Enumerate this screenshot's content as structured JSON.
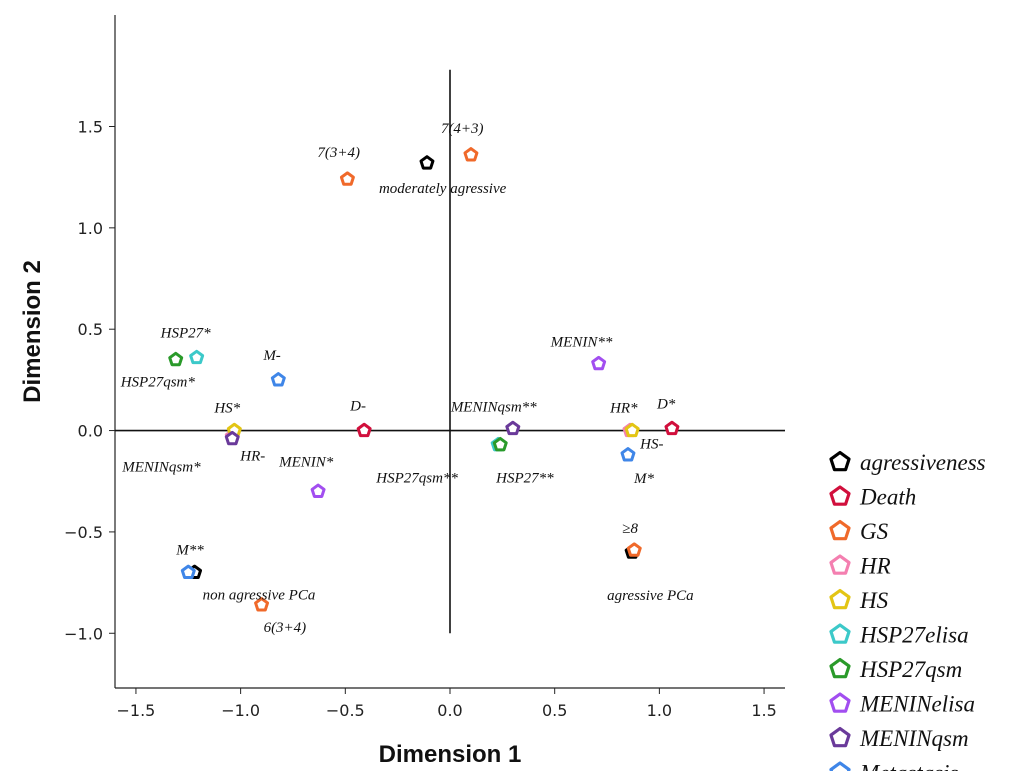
{
  "chart_data": {
    "type": "scatter",
    "title": "",
    "xlabel": "Dimension 1",
    "ylabel": "Dimension 2",
    "xlim": [
      -1.6,
      1.6
    ],
    "ylim": [
      -1.27,
      2.05
    ],
    "xticks": [
      "-1.5",
      "-1.0",
      "-0.5",
      "0.0",
      "0.5",
      "1.0",
      "1.5"
    ],
    "yticks": [
      "-1.0",
      "-0.5",
      "0.0",
      "0.5",
      "1.0",
      "1.5"
    ],
    "xtick_values": [
      -1.5,
      -1.0,
      -0.5,
      0.0,
      0.5,
      1.0,
      1.5
    ],
    "ytick_values": [
      -1.0,
      -0.5,
      0.0,
      0.5,
      1.0,
      1.5
    ],
    "grid": false,
    "reference_lines": {
      "x": 0,
      "y": 0
    },
    "legend_position": "right",
    "series": [
      {
        "name": "agressiveness",
        "color": "#000000",
        "points": [
          {
            "x": -0.11,
            "y": 1.32,
            "label": "moderately agressive"
          },
          {
            "x": 0.87,
            "y": -0.6,
            "label": "agressive PCa"
          },
          {
            "x": -1.22,
            "y": -0.7,
            "label": "non agressive PCa"
          }
        ]
      },
      {
        "name": "Death",
        "color": "#d10f3c",
        "points": [
          {
            "x": -0.41,
            "y": 0.0,
            "label": "D-"
          },
          {
            "x": 1.06,
            "y": 0.01,
            "label": "D*"
          }
        ]
      },
      {
        "name": "GS",
        "color": "#f0692a",
        "points": [
          {
            "x": 0.1,
            "y": 1.36,
            "label": "7(4+3)"
          },
          {
            "x": -0.49,
            "y": 1.24,
            "label": "7(3+4)"
          },
          {
            "x": 0.88,
            "y": -0.59,
            "label": "≥8"
          },
          {
            "x": -0.9,
            "y": -0.86,
            "label": "6(3+4)"
          }
        ]
      },
      {
        "name": "HR",
        "color": "#f47fb0",
        "points": [
          {
            "x": 0.86,
            "y": 0.0,
            "label": "HR*"
          },
          {
            "x": -1.04,
            "y": -0.03,
            "label": "HR-"
          }
        ]
      },
      {
        "name": "HS",
        "color": "#e3c514",
        "points": [
          {
            "x": 0.87,
            "y": 0.0,
            "label": "HS-"
          },
          {
            "x": -1.03,
            "y": 0.0,
            "label": "HS*"
          }
        ]
      },
      {
        "name": "HSP27elisa",
        "color": "#3cc9c9",
        "points": [
          {
            "x": -1.21,
            "y": 0.36,
            "label": "HSP27*"
          },
          {
            "x": 0.23,
            "y": -0.07,
            "label": "HSP27**"
          }
        ]
      },
      {
        "name": "HSP27qsm",
        "color": "#2a9a2a",
        "points": [
          {
            "x": -1.31,
            "y": 0.35,
            "label": "HSP27qsm*"
          },
          {
            "x": 0.24,
            "y": -0.07,
            "label": "HSP27qsm**"
          }
        ]
      },
      {
        "name": "MENINelisa",
        "color": "#a24ef0",
        "points": [
          {
            "x": 0.71,
            "y": 0.33,
            "label": "MENIN**"
          },
          {
            "x": -0.63,
            "y": -0.3,
            "label": "MENIN*"
          }
        ]
      },
      {
        "name": "MENINqsm",
        "color": "#6a3a9a",
        "points": [
          {
            "x": 0.3,
            "y": 0.01,
            "label": "MENINqsm**"
          },
          {
            "x": -1.04,
            "y": -0.04,
            "label": "MENINqsm*"
          }
        ]
      },
      {
        "name": "Metastasis",
        "color": "#3f86e8",
        "points": [
          {
            "x": -0.82,
            "y": 0.25,
            "label": "M-"
          },
          {
            "x": 0.85,
            "y": -0.12,
            "label": "M*"
          },
          {
            "x": -1.25,
            "y": -0.7,
            "label": "M**"
          }
        ]
      }
    ]
  }
}
